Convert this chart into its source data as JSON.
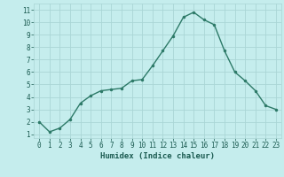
{
  "x": [
    0,
    1,
    2,
    3,
    4,
    5,
    6,
    7,
    8,
    9,
    10,
    11,
    12,
    13,
    14,
    15,
    16,
    17,
    18,
    19,
    20,
    21,
    22,
    23
  ],
  "y": [
    2.0,
    1.2,
    1.5,
    2.2,
    3.5,
    4.1,
    4.5,
    4.6,
    4.7,
    5.3,
    5.4,
    6.5,
    7.7,
    8.9,
    10.4,
    10.8,
    10.2,
    9.8,
    7.7,
    6.0,
    5.3,
    4.5,
    3.3,
    3.0
  ],
  "line_color": "#2d7a68",
  "marker": ".",
  "marker_size": 3,
  "bg_color": "#c5eded",
  "grid_color": "#aad6d6",
  "xlabel": "Humidex (Indice chaleur)",
  "ylabel_ticks": [
    1,
    2,
    3,
    4,
    5,
    6,
    7,
    8,
    9,
    10,
    11
  ],
  "xtick_labels": [
    "0",
    "1",
    "2",
    "3",
    "4",
    "5",
    "6",
    "7",
    "8",
    "9",
    "10",
    "11",
    "12",
    "13",
    "14",
    "15",
    "16",
    "17",
    "18",
    "19",
    "20",
    "21",
    "22",
    "23"
  ],
  "ylim": [
    0.7,
    11.5
  ],
  "xlim": [
    -0.5,
    23.5
  ],
  "tick_color": "#1a5a50",
  "label_fontsize": 6.5,
  "tick_fontsize": 5.5,
  "line_width": 1.0
}
